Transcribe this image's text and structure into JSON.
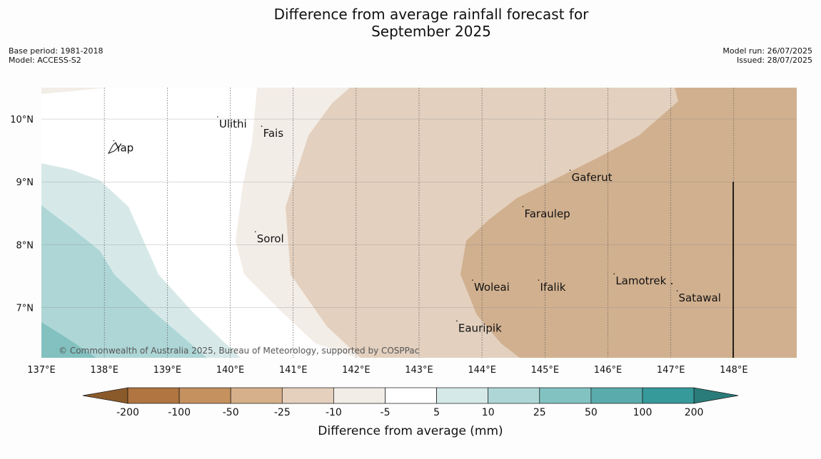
{
  "title_line1": "Difference from average rainfall forecast for",
  "title_line2": "September 2025",
  "base_period": "Base period: 1981-2018",
  "model": "Model: ACCESS-S2",
  "model_run": "Model run: 26/07/2025",
  "issued": "Issued: 28/07/2025",
  "copyright": "© Commonwealth of Australia 2025, Bureau of Meteorology, supported by COSPPac",
  "lon_ticks": [
    {
      "value": 137,
      "label": "137°E"
    },
    {
      "value": 138,
      "label": "138°E"
    },
    {
      "value": 139,
      "label": "139°E"
    },
    {
      "value": 140,
      "label": "140°E"
    },
    {
      "value": 141,
      "label": "141°E"
    },
    {
      "value": 142,
      "label": "142°E"
    },
    {
      "value": 143,
      "label": "143°E"
    },
    {
      "value": 144,
      "label": "144°E"
    },
    {
      "value": 145,
      "label": "145°E"
    },
    {
      "value": 146,
      "label": "146°E"
    },
    {
      "value": 147,
      "label": "147°E"
    },
    {
      "value": 148,
      "label": "148°E"
    }
  ],
  "lat_ticks": [
    {
      "value": 10,
      "label": "10°N"
    },
    {
      "value": 9,
      "label": "9°N"
    },
    {
      "value": 8,
      "label": "8°N"
    },
    {
      "value": 7,
      "label": "7°N"
    }
  ],
  "extent": {
    "lon_min": 137,
    "lon_max": 149,
    "lat_min": 6.2,
    "lat_max": 10.5
  },
  "places": [
    {
      "name": "Ulithi",
      "lon": 139.8,
      "lat": 9.9
    },
    {
      "name": "Fais",
      "lon": 140.5,
      "lat": 9.75
    },
    {
      "name": "Yap",
      "lon": 138.15,
      "lat": 9.52
    },
    {
      "name": "Gaferut",
      "lon": 145.4,
      "lat": 9.05
    },
    {
      "name": "Faraulep",
      "lon": 144.65,
      "lat": 8.47
    },
    {
      "name": "Sorol",
      "lon": 140.4,
      "lat": 8.07
    },
    {
      "name": "Lamotrek",
      "lon": 146.1,
      "lat": 7.4
    },
    {
      "name": "Woleai",
      "lon": 143.85,
      "lat": 7.3
    },
    {
      "name": "Ifalik",
      "lon": 144.9,
      "lat": 7.3
    },
    {
      "name": "Satawal",
      "lon": 147.1,
      "lat": 7.13
    },
    {
      "name": "Eauripik",
      "lon": 143.6,
      "lat": 6.65
    }
  ],
  "legend": {
    "title": "Difference from average (mm)",
    "bounds": [
      "-200",
      "-100",
      "-50",
      "-25",
      "-10",
      "-5",
      "5",
      "10",
      "25",
      "50",
      "100",
      "200"
    ],
    "colors": [
      "#8b5a2b",
      "#b07540",
      "#c4915f",
      "#d6b08a",
      "#e4d0bd",
      "#f3ede7",
      "#ffffff",
      "#d5e9e8",
      "#aed6d6",
      "#82c3c2",
      "#5aacac",
      "#36999a",
      "#2a7c7a"
    ]
  }
}
